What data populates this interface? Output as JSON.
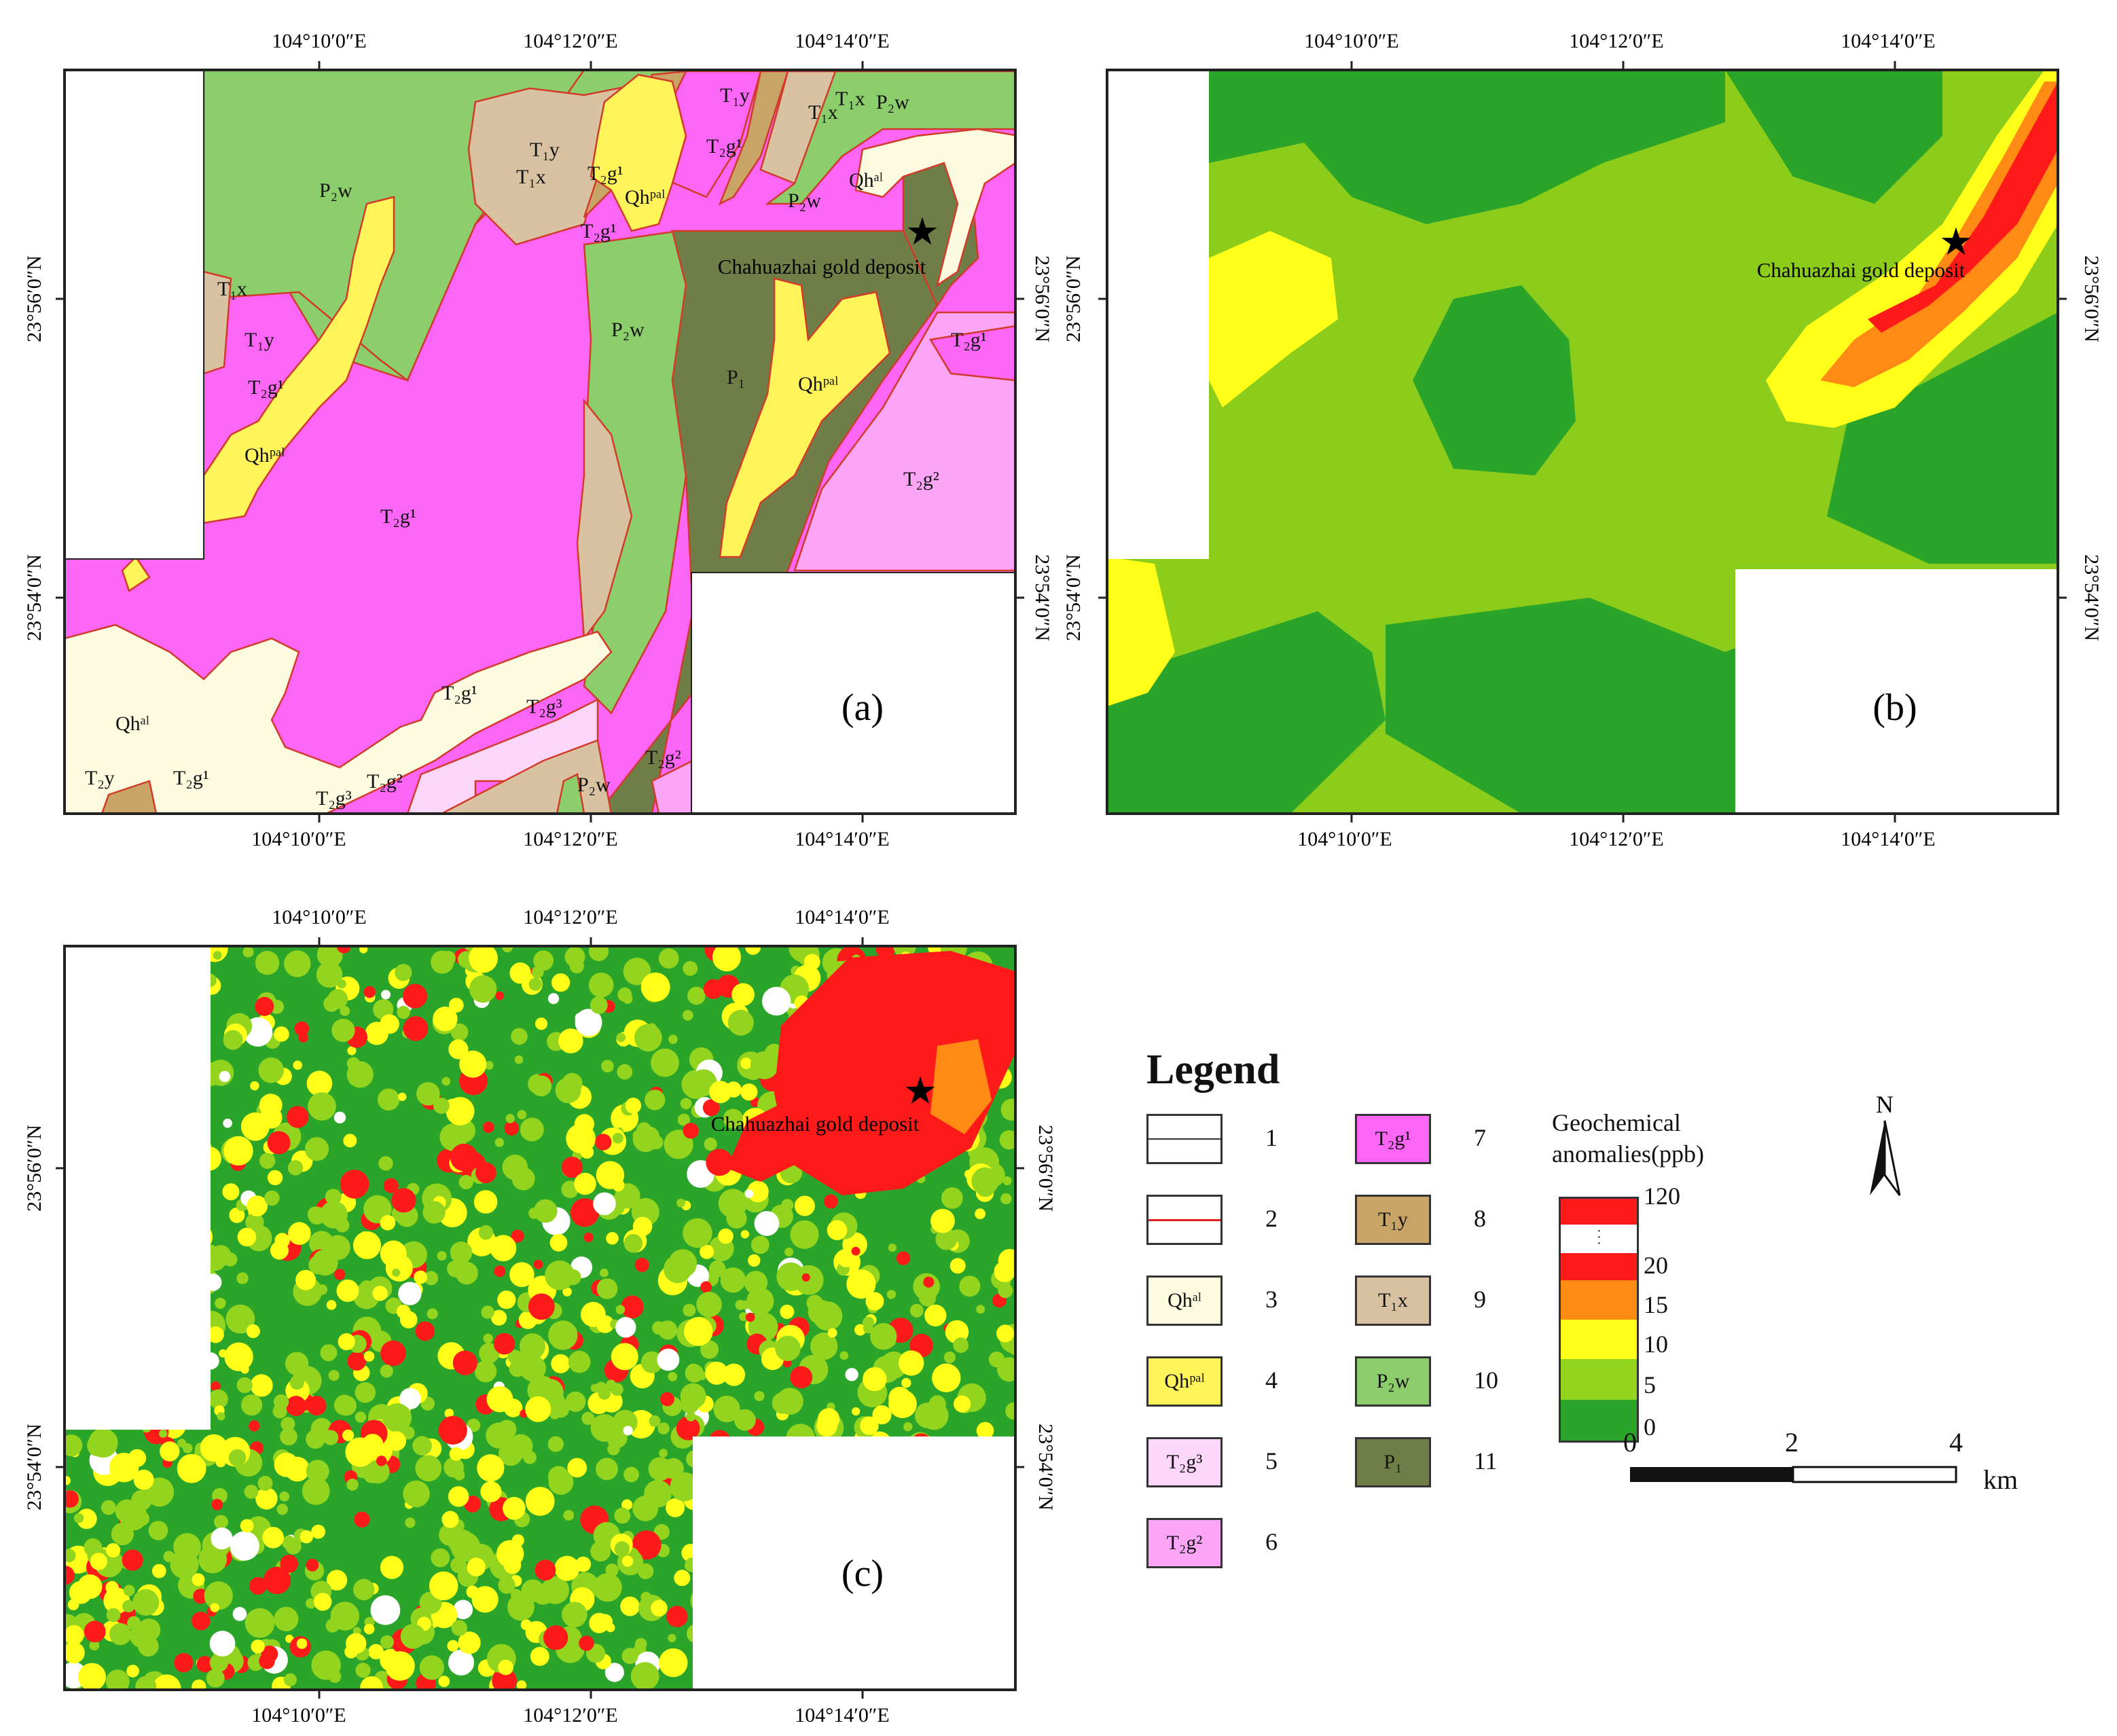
{
  "panels": {
    "a": {
      "letter": "(a)",
      "top_ticks": [
        "104°10′0″E",
        "104°12′0″E",
        "104°14′0″E"
      ],
      "bottom_ticks": [
        "104°10′0″E",
        "104°12′0″E",
        "104°14′0″E"
      ],
      "left_ticks": [
        "23°56′0″N",
        "23°54′0″N"
      ],
      "right_ticks": [
        "23°56′0″N",
        "23°54′0″N"
      ],
      "deposit_label": "Chahuazhai gold deposit"
    },
    "b": {
      "letter": "(b)",
      "top_ticks": [
        "104°10′0″E",
        "104°12′0″E",
        "104°14′0″E"
      ],
      "bottom_ticks": [
        "104°10′0″E",
        "104°12′0″E",
        "104°14′0″E"
      ],
      "left_ticks": [
        "23°56′0″N",
        "23°54′0″N"
      ],
      "right_ticks": [
        "23°56′0″N",
        "23°54′0″N"
      ],
      "deposit_label": "Chahuazhai gold deposit"
    },
    "c": {
      "letter": "(c)",
      "top_ticks": [
        "104°10′0″E",
        "104°12′0″E",
        "104°14′0″E"
      ],
      "bottom_ticks": [
        "104°10′0″E",
        "104°12′0″E",
        "104°14′0″E"
      ],
      "left_ticks": [
        "23°56′0″N",
        "23°54′0″N"
      ],
      "right_ticks": [
        "23°56′0″N",
        "23°54′0″N"
      ],
      "deposit_label": "Chahuazhai gold deposit"
    }
  },
  "map_labels": {
    "P2w": "P₂w",
    "T1x": "T₁x",
    "T1y": "T₁y",
    "T2g1": "T₂g¹",
    "T2g2": "T₂g²",
    "T2g3": "T₂g³",
    "Qhpal": "Qhᵖᵃˡ",
    "Qhal": "Qhᵃˡ",
    "P1": "P₁",
    "T2y": "T₂y"
  },
  "legend": {
    "title": "Legend",
    "items": [
      {
        "num": "1",
        "label": "",
        "fill": "#ffffff"
      },
      {
        "num": "2",
        "label": "",
        "fill": "#ffffff"
      },
      {
        "num": "3",
        "label": "Qhᵃˡ",
        "fill": "#fdfbe0"
      },
      {
        "num": "4",
        "label": "Qhᵖᵃˡ",
        "fill": "#fff45a"
      },
      {
        "num": "5",
        "label": "T₂g³",
        "fill": "#fdd7fb"
      },
      {
        "num": "6",
        "label": "T₂g²",
        "fill": "#fca5f7"
      },
      {
        "num": "7",
        "label": "T₂g¹",
        "fill": "#fc66f6"
      },
      {
        "num": "8",
        "label": "T₁y",
        "fill": "#c8a466"
      },
      {
        "num": "9",
        "label": "T₁x",
        "fill": "#d8c2a1"
      },
      {
        "num": "10",
        "label": "P₂w",
        "fill": "#8ccd6c"
      },
      {
        "num": "11",
        "label": "P₁",
        "fill": "#6f7e46"
      }
    ],
    "scale_title_line1": "Geochemical",
    "scale_title_line2": "anomalies(ppb)",
    "scale_colors": [
      "#ff1a1a",
      "#ffffff",
      "#ff1a1a",
      "#ff8a14",
      "#ffff1a",
      "#92d41e",
      "#2aa52a"
    ],
    "scale_ticks": [
      "120",
      "20",
      "15",
      "10",
      "5",
      "0"
    ],
    "north": "N",
    "scalebar_ticks": [
      "0",
      "2",
      "4"
    ],
    "scalebar_unit": "km"
  }
}
